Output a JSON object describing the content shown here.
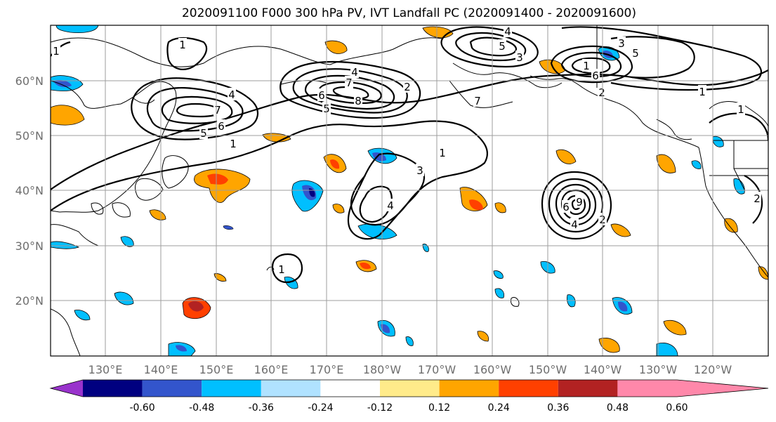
{
  "title": "2020091100 F000 300 hPa PV, IVT Landfall PC (2020091400 - 2020091600)",
  "lat_labels": [
    "60°N",
    "50°N",
    "40°N",
    "30°N",
    "20°N"
  ],
  "lon_labels": [
    "130°E",
    "140°E",
    "150°E",
    "160°E",
    "170°E",
    "180°W",
    "170°W",
    "160°W",
    "150°W",
    "140°W",
    "130°W",
    "120°W"
  ],
  "colorbar": {
    "colors": [
      "#9933cc",
      "#000080",
      "#3355cc",
      "#00bfff",
      "#b0e2ff",
      "#ffffff",
      "#ffeb8a",
      "#ffa500",
      "#ff4000",
      "#b22222",
      "#ff88aa"
    ],
    "tick_labels": [
      "-0.60",
      "-0.48",
      "-0.36",
      "-0.24",
      "-0.12",
      "0.12",
      "0.24",
      "0.36",
      "0.48",
      "0.60"
    ]
  },
  "contour_labels": [
    "1",
    "1",
    "4",
    "7",
    "6",
    "5",
    "4",
    "7",
    "6",
    "5",
    "8",
    "2",
    "1",
    "3",
    "4",
    "4",
    "3",
    "5",
    "1",
    "6",
    "2",
    "3",
    "5",
    "1",
    "1",
    "2",
    "9",
    "4",
    "2",
    "6",
    "7",
    "1",
    "1"
  ],
  "colors": {
    "contour": "#000000",
    "grid": "#9e9e9e",
    "coast": "#000000",
    "tick_text": "#6e6e6e"
  }
}
